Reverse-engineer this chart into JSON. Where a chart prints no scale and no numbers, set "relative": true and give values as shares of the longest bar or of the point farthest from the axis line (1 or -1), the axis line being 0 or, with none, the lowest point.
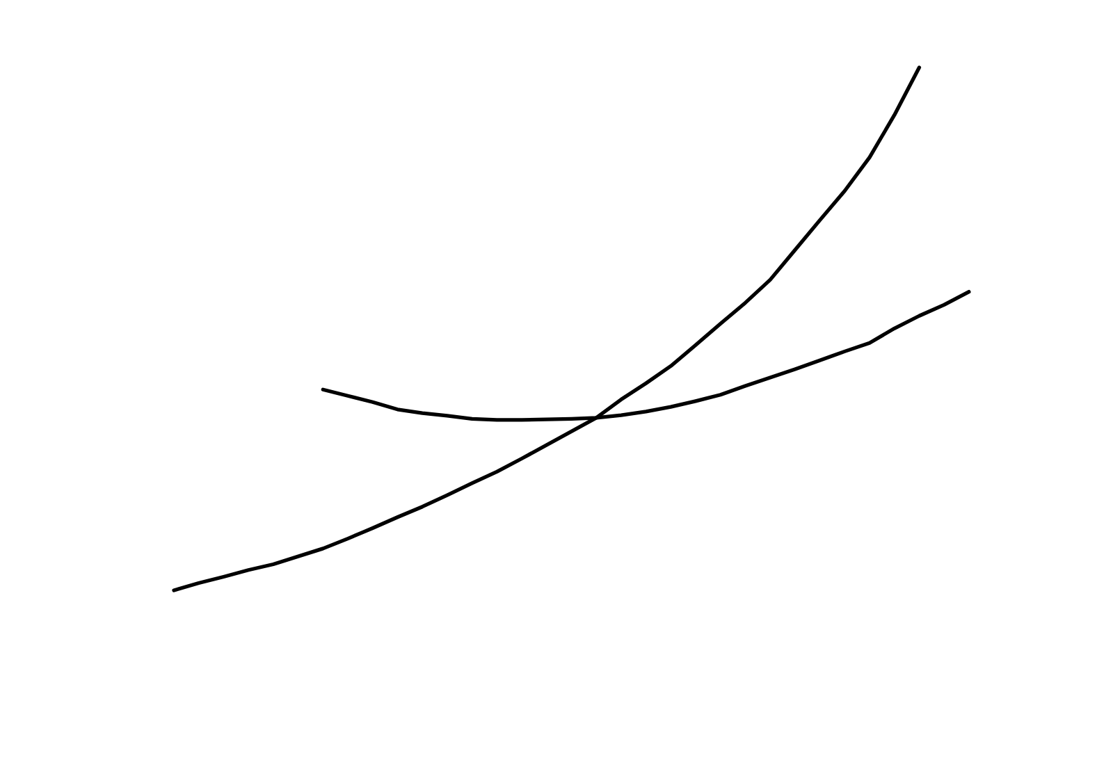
{
  "chart_data": {
    "type": "line",
    "relative": true,
    "categories": [
      null,
      null,
      null,
      null,
      null,
      null,
      null,
      null,
      null,
      null,
      null,
      null,
      null,
      null,
      null,
      null,
      null,
      null,
      null,
      null,
      null,
      null,
      null,
      null,
      null,
      null,
      null,
      null,
      null,
      null,
      null,
      null,
      null
    ],
    "series": [
      {
        "color": "#000000",
        "values": [
          0,
          0.014,
          0.026,
          0.039,
          0.05,
          0.065,
          0.08,
          0.099,
          0.119,
          0.14,
          0.16,
          0.182,
          0.205,
          0.227,
          0.252,
          0.278,
          0.304,
          0.33,
          0.365,
          0.396,
          0.429,
          0.469,
          0.51,
          0.55,
          0.594,
          0.651,
          0.708,
          0.764,
          0.828,
          0.909,
          1,
          null,
          null
        ]
      },
      {
        "color": "#000000",
        "values": [
          null,
          null,
          null,
          null,
          null,
          null,
          0.384,
          0.372,
          0.36,
          0.346,
          0.339,
          0.334,
          0.328,
          0.326,
          0.326,
          0.327,
          0.328,
          0.33,
          0.335,
          0.342,
          0.351,
          0.362,
          0.374,
          0.391,
          0.407,
          0.423,
          0.44,
          0.457,
          0.473,
          0.501,
          0.525,
          0.546,
          0.571
        ]
      }
    ]
  }
}
